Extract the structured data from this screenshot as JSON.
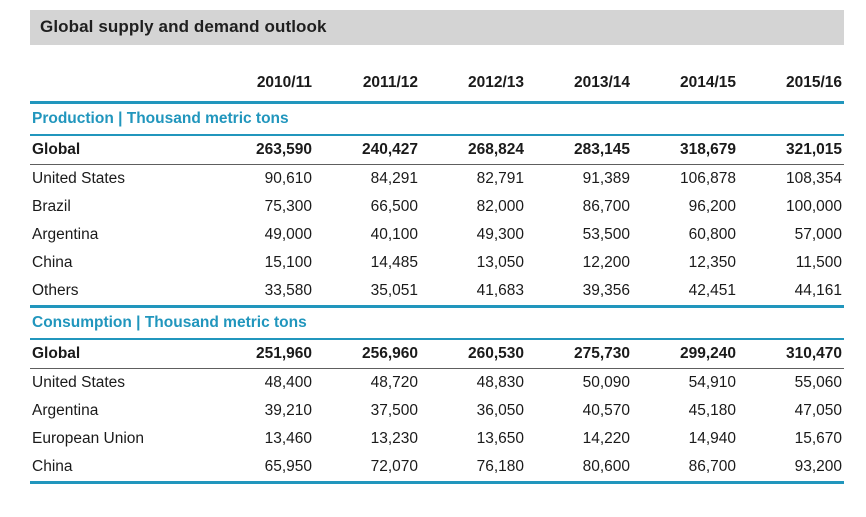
{
  "title": "Global supply and demand outlook",
  "colors": {
    "accent_teal": "#2196bd",
    "title_bar_bg": "#d4d4d4",
    "text": "#1a1a1a"
  },
  "chart_data": {
    "type": "table",
    "title": "Global supply and demand outlook",
    "columns": [
      "",
      "2010/11",
      "2011/12",
      "2012/13",
      "2013/14",
      "2014/15",
      "2015/16"
    ],
    "sections": [
      {
        "header": "Production | Thousand metric tons",
        "rows": [
          {
            "label": "Global",
            "bold": true,
            "values": [
              "263,590",
              "240,427",
              "268,824",
              "283,145",
              "318,679",
              "321,015"
            ]
          },
          {
            "label": "United States",
            "bold": false,
            "values": [
              "90,610",
              "84,291",
              "82,791",
              "91,389",
              "106,878",
              "108,354"
            ]
          },
          {
            "label": "Brazil",
            "bold": false,
            "values": [
              "75,300",
              "66,500",
              "82,000",
              "86,700",
              "96,200",
              "100,000"
            ]
          },
          {
            "label": "Argentina",
            "bold": false,
            "values": [
              "49,000",
              "40,100",
              "49,300",
              "53,500",
              "60,800",
              "57,000"
            ]
          },
          {
            "label": "China",
            "bold": false,
            "values": [
              "15,100",
              "14,485",
              "13,050",
              "12,200",
              "12,350",
              "11,500"
            ]
          },
          {
            "label": "Others",
            "bold": false,
            "values": [
              "33,580",
              "35,051",
              "41,683",
              "39,356",
              "42,451",
              "44,161"
            ]
          }
        ]
      },
      {
        "header": "Consumption | Thousand metric tons",
        "rows": [
          {
            "label": "Global",
            "bold": true,
            "values": [
              "251,960",
              "256,960",
              "260,530",
              "275,730",
              "299,240",
              "310,470"
            ]
          },
          {
            "label": "United States",
            "bold": false,
            "values": [
              "48,400",
              "48,720",
              "48,830",
              "50,090",
              "54,910",
              "55,060"
            ]
          },
          {
            "label": "Argentina",
            "bold": false,
            "values": [
              "39,210",
              "37,500",
              "36,050",
              "40,570",
              "45,180",
              "47,050"
            ]
          },
          {
            "label": "European Union",
            "bold": false,
            "values": [
              "13,460",
              "13,230",
              "13,650",
              "14,220",
              "14,940",
              "15,670"
            ]
          },
          {
            "label": "China",
            "bold": false,
            "values": [
              "65,950",
              "72,070",
              "76,180",
              "80,600",
              "86,700",
              "93,200"
            ]
          }
        ]
      }
    ]
  }
}
